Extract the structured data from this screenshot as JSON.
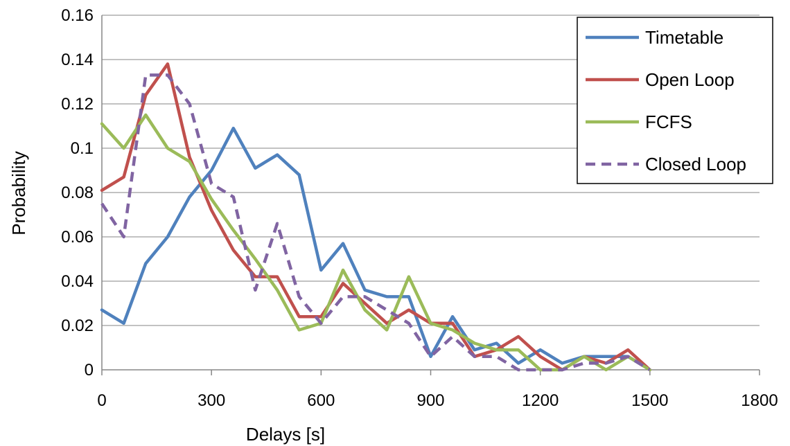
{
  "chart_data": {
    "type": "line",
    "xlabel": "Delays [s]",
    "ylabel": "Probability",
    "xlim": [
      0,
      1800
    ],
    "ylim": [
      0,
      0.16
    ],
    "xticks": [
      "0",
      "300",
      "600",
      "900",
      "1200",
      "1500",
      "1800"
    ],
    "yticks": [
      "0",
      "0.02",
      "0.04",
      "0.06",
      "0.08",
      "0.1",
      "0.12",
      "0.14",
      "0.16"
    ],
    "grid": "horizontal",
    "legend_position": "top-right",
    "x": [
      0,
      60,
      120,
      180,
      240,
      300,
      360,
      420,
      480,
      540,
      600,
      660,
      720,
      780,
      840,
      900,
      960,
      1020,
      1080,
      1140,
      1200,
      1260,
      1320,
      1380,
      1440,
      1500
    ],
    "series": [
      {
        "name": "Timetable",
        "color": "#4f81bd",
        "dash": "solid",
        "values": [
          0.027,
          0.021,
          0.048,
          0.06,
          0.078,
          0.09,
          0.109,
          0.091,
          0.097,
          0.088,
          0.045,
          0.057,
          0.036,
          0.033,
          0.033,
          0.006,
          0.024,
          0.009,
          0.012,
          0.003,
          0.009,
          0.003,
          0.006,
          0.006,
          0.006,
          0.0
        ]
      },
      {
        "name": "Open Loop",
        "color": "#c0504d",
        "dash": "solid",
        "values": [
          0.081,
          0.087,
          0.124,
          0.138,
          0.096,
          0.072,
          0.054,
          0.042,
          0.042,
          0.024,
          0.024,
          0.039,
          0.03,
          0.021,
          0.027,
          0.021,
          0.021,
          0.006,
          0.009,
          0.015,
          0.006,
          0.0,
          0.006,
          0.003,
          0.009,
          0.0
        ]
      },
      {
        "name": "FCFS",
        "color": "#9bbb59",
        "dash": "solid",
        "values": [
          0.111,
          0.1,
          0.115,
          0.1,
          0.094,
          0.077,
          0.063,
          0.05,
          0.036,
          0.018,
          0.021,
          0.045,
          0.027,
          0.018,
          0.042,
          0.021,
          0.018,
          0.012,
          0.009,
          0.009,
          0.0,
          0.0,
          0.006,
          0.0,
          0.006,
          0.0
        ]
      },
      {
        "name": "Closed Loop",
        "color": "#8064a2",
        "dash": "dashed",
        "values": [
          0.075,
          0.06,
          0.133,
          0.133,
          0.12,
          0.084,
          0.078,
          0.036,
          0.066,
          0.033,
          0.021,
          0.033,
          0.033,
          0.027,
          0.021,
          0.006,
          0.015,
          0.006,
          0.006,
          0.0,
          0.0,
          0.0,
          0.003,
          0.003,
          0.006,
          0.0
        ]
      }
    ]
  }
}
